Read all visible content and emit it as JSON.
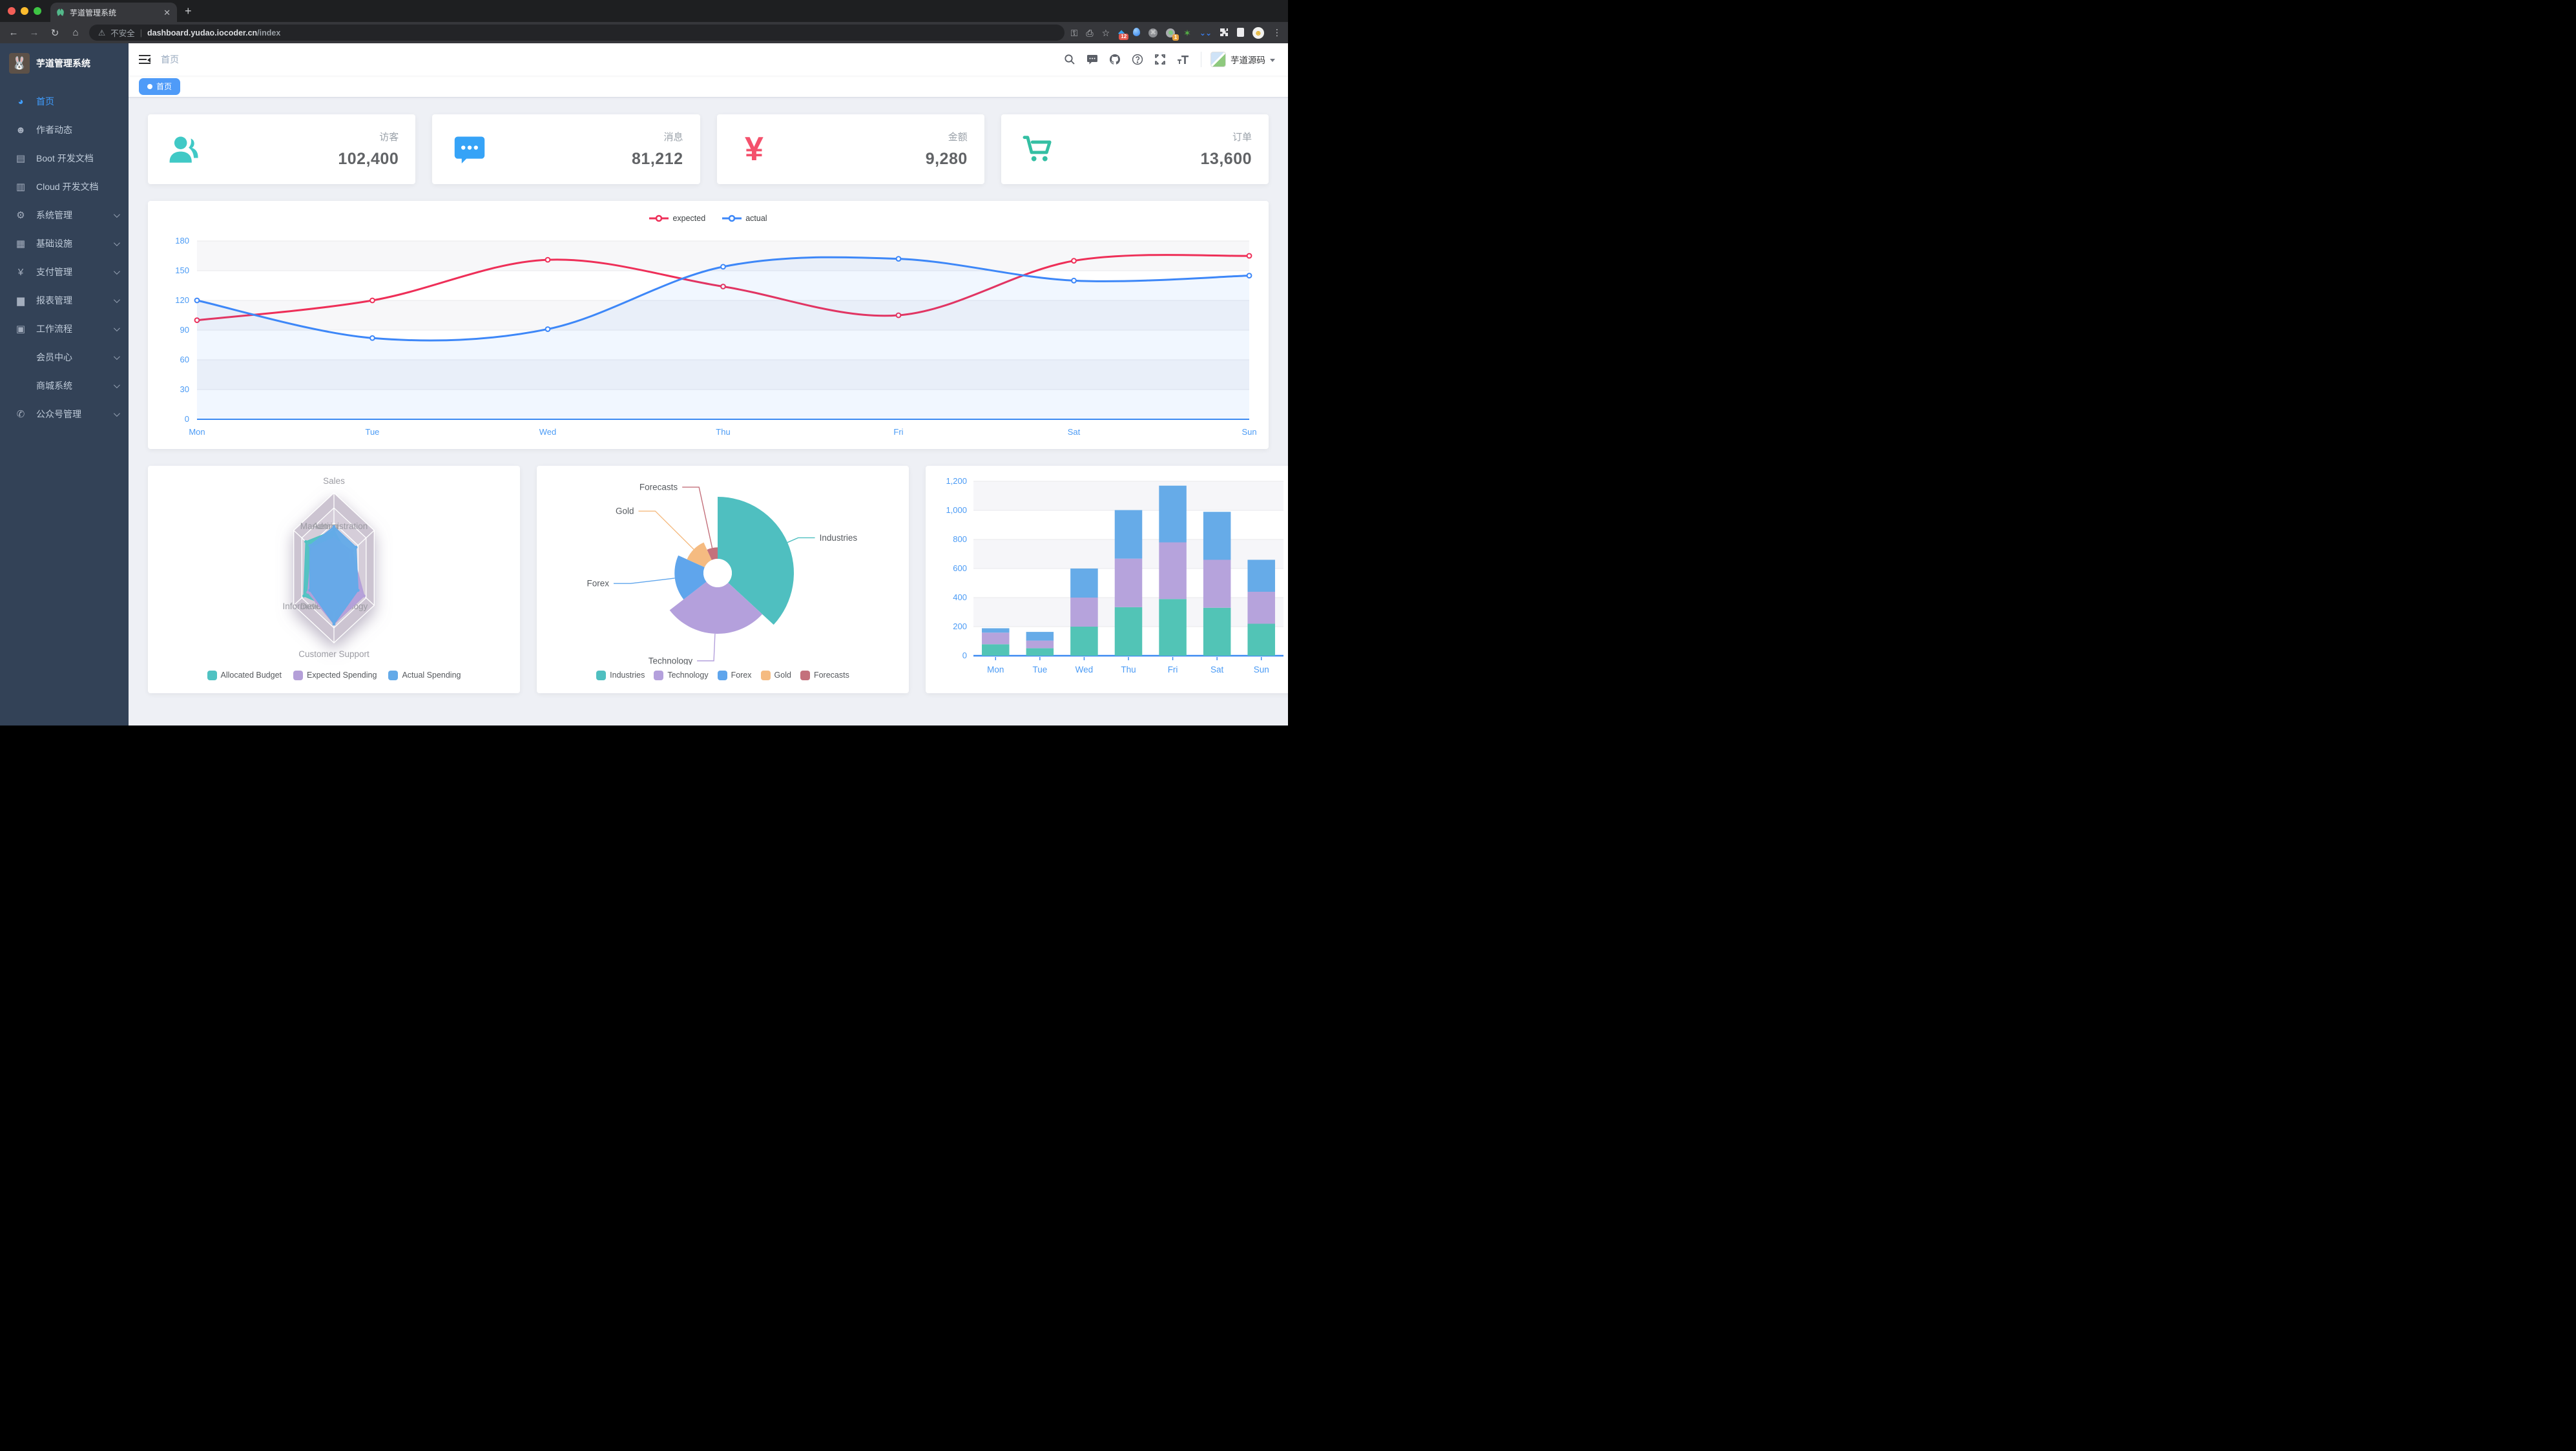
{
  "browser": {
    "tab_title": "芋道管理系统",
    "new_tab_label": "+",
    "url": {
      "security": "不安全",
      "host": "dashboard.yudao.iocoder.cn",
      "path": "/index"
    },
    "extension_badges": {
      "tasks": "12",
      "notifications": "1"
    }
  },
  "sidebar": {
    "title": "芋道管理系统",
    "items": [
      {
        "label": "首页",
        "icon": "dashboard",
        "active": true,
        "arrow": false
      },
      {
        "label": "作者动态",
        "icon": "author",
        "active": false,
        "arrow": false
      },
      {
        "label": "Boot 开发文档",
        "icon": "book",
        "active": false,
        "arrow": false
      },
      {
        "label": "Cloud 开发文档",
        "icon": "document",
        "active": false,
        "arrow": false
      },
      {
        "label": "系统管理",
        "icon": "gear",
        "active": false,
        "arrow": true
      },
      {
        "label": "基础设施",
        "icon": "infrastructure",
        "active": false,
        "arrow": true
      },
      {
        "label": "支付管理",
        "icon": "yen",
        "active": false,
        "arrow": true
      },
      {
        "label": "报表管理",
        "icon": "report",
        "active": false,
        "arrow": true
      },
      {
        "label": "工作流程",
        "icon": "workflow",
        "active": false,
        "arrow": true
      },
      {
        "label": "会员中心",
        "icon": null,
        "active": false,
        "arrow": true
      },
      {
        "label": "商城系统",
        "icon": null,
        "active": false,
        "arrow": true
      },
      {
        "label": "公众号管理",
        "icon": "wechat",
        "active": false,
        "arrow": true
      }
    ]
  },
  "header": {
    "breadcrumb": "首页",
    "username": "芋道源码"
  },
  "tags": {
    "active": "首页"
  },
  "stats": [
    {
      "label": "访客",
      "value": "102,400",
      "icon": "people",
      "color": "#40c9c6"
    },
    {
      "label": "消息",
      "value": "81,212",
      "icon": "message",
      "color": "#36a3f7"
    },
    {
      "label": "金额",
      "value": "9,280",
      "icon": "money",
      "color": "#f4516c"
    },
    {
      "label": "订单",
      "value": "13,600",
      "icon": "cart",
      "color": "#34bfa3"
    }
  ],
  "chart_data": [
    {
      "type": "line",
      "x": [
        "Mon",
        "Tue",
        "Wed",
        "Thu",
        "Fri",
        "Sat",
        "Sun"
      ],
      "series": [
        {
          "name": "expected",
          "color": "#ee2f58",
          "values": [
            100,
            120,
            161,
            134,
            105,
            160,
            165
          ]
        },
        {
          "name": "actual",
          "color": "#3d87f8",
          "values": [
            120,
            82,
            91,
            154,
            162,
            140,
            145
          ]
        }
      ],
      "ylim": [
        0,
        180
      ],
      "ytick_step": 30,
      "grid": true,
      "legend_position": "top"
    },
    {
      "type": "radar",
      "indicators": [
        {
          "name": "Sales",
          "max": 10000
        },
        {
          "name": "Administration",
          "max": 20000
        },
        {
          "name": "Information Techology",
          "max": 20000
        },
        {
          "name": "Customer Support",
          "max": 20000
        },
        {
          "name": "Development",
          "max": 20000
        },
        {
          "name": "Marketing",
          "max": 20000
        }
      ],
      "series": [
        {
          "name": "Allocated Budget",
          "color": "#4fc2c2",
          "values": [
            5000,
            7000,
            12000,
            11000,
            15000,
            14000
          ]
        },
        {
          "name": "Expected Spending",
          "color": "#b49fd8",
          "values": [
            4000,
            9000,
            15000,
            15000,
            13000,
            11000
          ]
        },
        {
          "name": "Actual Spending",
          "color": "#64aae8",
          "values": [
            5500,
            11000,
            12000,
            15000,
            12000,
            12000
          ]
        }
      ],
      "legend_position": "bottom"
    },
    {
      "type": "pie",
      "rose": true,
      "items": [
        {
          "name": "Industries",
          "value": 320,
          "color": "#4fbfc0"
        },
        {
          "name": "Technology",
          "value": 240,
          "color": "#b4a0dc"
        },
        {
          "name": "Forex",
          "value": 149,
          "color": "#5fa5ec"
        },
        {
          "name": "Gold",
          "value": 100,
          "color": "#f5bb81"
        },
        {
          "name": "Forecasts",
          "value": 59,
          "color": "#c4717c"
        }
      ],
      "legend_position": "bottom"
    },
    {
      "type": "bar",
      "stacked": true,
      "categories": [
        "Mon",
        "Tue",
        "Wed",
        "Thu",
        "Fri",
        "Sat",
        "Sun"
      ],
      "series": [
        {
          "color": "#52c4b6",
          "values": [
            79,
            52,
            200,
            334,
            390,
            330,
            220
          ]
        },
        {
          "color": "#b6a3dc",
          "values": [
            80,
            52,
            200,
            334,
            390,
            330,
            220
          ]
        },
        {
          "color": "#66abe8",
          "values": [
            30,
            60,
            200,
            334,
            390,
            330,
            220
          ]
        }
      ],
      "ylim": [
        0,
        1200
      ],
      "ytick_step": 200,
      "grid": true
    }
  ]
}
